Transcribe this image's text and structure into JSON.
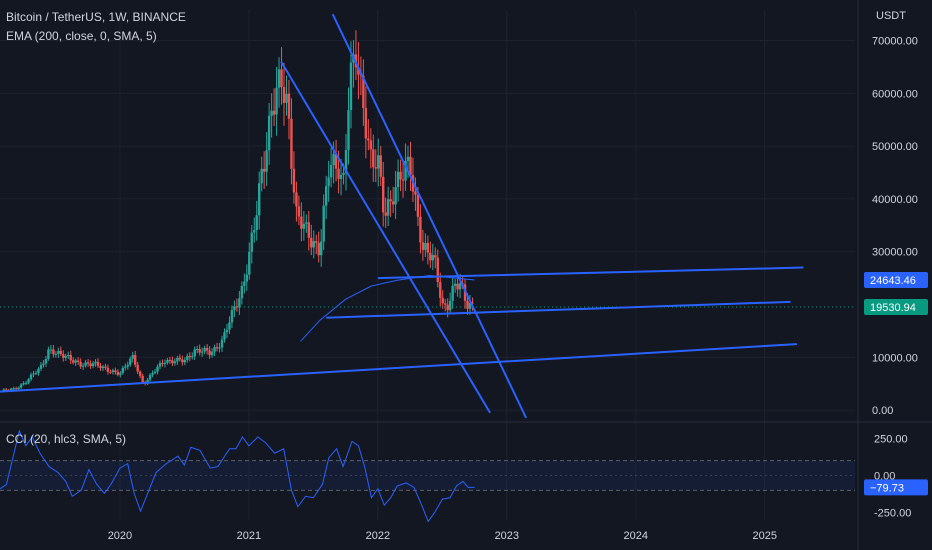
{
  "header": {
    "symbol": "Bitcoin / TetherUS",
    "interval": "1W",
    "exchange": "BINANCE",
    "separator": ","
  },
  "indicators": {
    "ema_label": "EMA (200, close, 0, SMA, 5)",
    "cci_label": "CCI (20, hlc3, SMA, 5)"
  },
  "axis": {
    "unit": "USDT"
  },
  "colors": {
    "background": "#131722",
    "up": "#26a69a",
    "down": "#ef5350",
    "trendline": "#2962ff",
    "ema": "#2962ff",
    "cci": "#2962ff",
    "price_badge": "#089981",
    "blue_badge": "#2962ff",
    "grid": "#1e222d"
  },
  "chart_data": [
    {
      "type": "candlestick",
      "title": "Bitcoin / TetherUS, 1W, BINANCE",
      "ylim": [
        -1500,
        72000
      ],
      "xlim": [
        2019.07,
        2025.7
      ],
      "x_ticks": [
        "2020",
        "2021",
        "2022",
        "2023",
        "2024",
        "2025"
      ],
      "y_ticks": [
        "70000.00",
        "60000.00",
        "50000.00",
        "40000.00",
        "30000.00",
        "10000.00",
        "0.00"
      ],
      "price_labels": {
        "last": "19530.94",
        "ema": "24643.46"
      },
      "close_series": [
        [
          2019.08,
          3600
        ],
        [
          2019.18,
          4000
        ],
        [
          2019.28,
          5500
        ],
        [
          2019.38,
          8000
        ],
        [
          2019.45,
          11500
        ],
        [
          2019.5,
          10500
        ],
        [
          2019.6,
          10300
        ],
        [
          2019.7,
          8200
        ],
        [
          2019.8,
          9200
        ],
        [
          2019.9,
          7300
        ],
        [
          2020.0,
          7200
        ],
        [
          2020.1,
          9800
        ],
        [
          2020.18,
          5000
        ],
        [
          2020.25,
          6800
        ],
        [
          2020.35,
          9500
        ],
        [
          2020.5,
          9200
        ],
        [
          2020.58,
          11500
        ],
        [
          2020.7,
          10700
        ],
        [
          2020.8,
          13500
        ],
        [
          2020.88,
          18500
        ],
        [
          2020.95,
          23500
        ],
        [
          2021.0,
          29000
        ],
        [
          2021.05,
          35000
        ],
        [
          2021.1,
          45000
        ],
        [
          2021.17,
          57000
        ],
        [
          2021.25,
          61000
        ],
        [
          2021.3,
          58000
        ],
        [
          2021.37,
          37000
        ],
        [
          2021.45,
          33000
        ],
        [
          2021.55,
          31000
        ],
        [
          2021.62,
          45000
        ],
        [
          2021.7,
          47000
        ],
        [
          2021.73,
          43000
        ],
        [
          2021.78,
          61000
        ],
        [
          2021.83,
          66000
        ],
        [
          2021.9,
          57000
        ],
        [
          2021.95,
          47000
        ],
        [
          2022.0,
          46000
        ],
        [
          2022.05,
          37000
        ],
        [
          2022.12,
          42000
        ],
        [
          2022.2,
          44000
        ],
        [
          2022.25,
          47000
        ],
        [
          2022.3,
          39000
        ],
        [
          2022.35,
          30000
        ],
        [
          2022.45,
          28000
        ],
        [
          2022.5,
          20000
        ],
        [
          2022.55,
          19500
        ],
        [
          2022.6,
          23500
        ],
        [
          2022.65,
          24000
        ],
        [
          2022.7,
          20000
        ],
        [
          2022.75,
          19500
        ]
      ],
      "ema200_series": [
        [
          2021.4,
          13000
        ],
        [
          2021.55,
          17000
        ],
        [
          2021.75,
          21000
        ],
        [
          2021.95,
          23500
        ],
        [
          2022.15,
          24600
        ],
        [
          2022.4,
          25500
        ],
        [
          2022.75,
          24643
        ]
      ],
      "trendlines": [
        {
          "from": [
            2021.25,
            66000
          ],
          "to": [
            2022.87,
            -500
          ]
        },
        {
          "from": [
            2021.65,
            75000
          ],
          "to": [
            2023.15,
            -1500
          ]
        },
        {
          "from": [
            2022.0,
            25000
          ],
          "to": [
            2025.3,
            27000
          ]
        },
        {
          "from": [
            2021.6,
            17500
          ],
          "to": [
            2025.2,
            20500
          ]
        },
        {
          "from": [
            2019.07,
            3500
          ],
          "to": [
            2025.25,
            12500
          ]
        }
      ]
    },
    {
      "type": "line",
      "title": "CCI (20, hlc3, SMA, 5)",
      "ylim": [
        -300,
        320
      ],
      "y_ticks": [
        "250.00",
        "0.00",
        "-250.00"
      ],
      "bands": [
        100,
        -100
      ],
      "last_label": "−79.73",
      "series": [
        {
          "values": [
            [
              2019.07,
              -90
            ],
            [
              2019.12,
              -60
            ],
            [
              2019.17,
              120
            ],
            [
              2019.22,
              300
            ],
            [
              2019.27,
              200
            ],
            [
              2019.32,
              260
            ],
            [
              2019.38,
              150
            ],
            [
              2019.45,
              60
            ],
            [
              2019.52,
              20
            ],
            [
              2019.58,
              -40
            ],
            [
              2019.63,
              -140
            ],
            [
              2019.7,
              -100
            ],
            [
              2019.76,
              40
            ],
            [
              2019.82,
              -60
            ],
            [
              2019.88,
              -120
            ],
            [
              2019.93,
              -60
            ],
            [
              2020.0,
              50
            ],
            [
              2020.06,
              80
            ],
            [
              2020.11,
              -120
            ],
            [
              2020.16,
              -240
            ],
            [
              2020.22,
              -110
            ],
            [
              2020.28,
              20
            ],
            [
              2020.36,
              80
            ],
            [
              2020.45,
              130
            ],
            [
              2020.5,
              70
            ],
            [
              2020.55,
              190
            ],
            [
              2020.62,
              170
            ],
            [
              2020.7,
              50
            ],
            [
              2020.76,
              60
            ],
            [
              2020.85,
              180
            ],
            [
              2020.9,
              180
            ],
            [
              2020.95,
              260
            ],
            [
              2021.0,
              200
            ],
            [
              2021.07,
              260
            ],
            [
              2021.13,
              220
            ],
            [
              2021.2,
              150
            ],
            [
              2021.27,
              180
            ],
            [
              2021.33,
              -100
            ],
            [
              2021.38,
              -210
            ],
            [
              2021.44,
              -140
            ],
            [
              2021.5,
              -150
            ],
            [
              2021.57,
              -60
            ],
            [
              2021.62,
              120
            ],
            [
              2021.68,
              180
            ],
            [
              2021.73,
              60
            ],
            [
              2021.8,
              230
            ],
            [
              2021.85,
              200
            ],
            [
              2021.9,
              50
            ],
            [
              2021.95,
              -150
            ],
            [
              2022.0,
              -90
            ],
            [
              2022.05,
              -200
            ],
            [
              2022.1,
              -150
            ],
            [
              2022.15,
              -70
            ],
            [
              2022.22,
              -50
            ],
            [
              2022.28,
              -80
            ],
            [
              2022.34,
              -200
            ],
            [
              2022.39,
              -310
            ],
            [
              2022.44,
              -250
            ],
            [
              2022.5,
              -160
            ],
            [
              2022.56,
              -150
            ],
            [
              2022.61,
              -70
            ],
            [
              2022.66,
              -40
            ],
            [
              2022.7,
              -80
            ],
            [
              2022.75,
              -79.73
            ]
          ]
        }
      ]
    }
  ]
}
